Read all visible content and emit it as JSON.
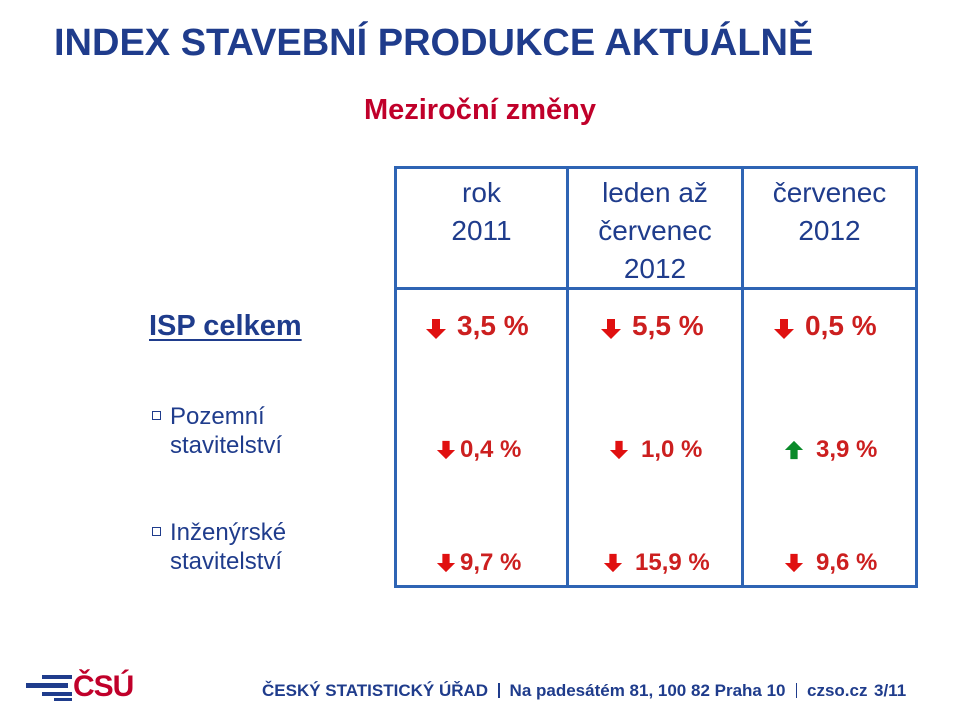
{
  "slide": {
    "title": "INDEX STAVEBNÍ PRODUKCE AKTUÁLNĚ",
    "subtitle": "Meziroční změny"
  },
  "columns": [
    {
      "lines": [
        "rok",
        "2011"
      ]
    },
    {
      "lines": [
        "leden až",
        "červenec",
        "2012"
      ]
    },
    {
      "lines": [
        "červenec",
        "2012"
      ]
    }
  ],
  "rows": [
    {
      "label_lines": [
        "ISP celkem"
      ],
      "values": [
        {
          "text": "3,5 %",
          "direction": "down"
        },
        {
          "text": "5,5 %",
          "direction": "down"
        },
        {
          "text": "0,5 %",
          "direction": "down"
        }
      ]
    },
    {
      "label_lines": [
        "Pozemní",
        "stavitelství"
      ],
      "values": [
        {
          "text": "0,4 %",
          "direction": "down"
        },
        {
          "text": "1,0 %",
          "direction": "down"
        },
        {
          "text": "3,9 %",
          "direction": "up"
        }
      ]
    },
    {
      "label_lines": [
        "Inženýrské",
        "stavitelství"
      ],
      "values": [
        {
          "text": "9,7 %",
          "direction": "down"
        },
        {
          "text": "15,9 %",
          "direction": "down"
        },
        {
          "text": "9,6 %",
          "direction": "down"
        }
      ]
    }
  ],
  "footer": {
    "logo_text": "ČSÚ",
    "org": "ČESKÝ STATISTICKÝ ÚŘAD",
    "address": "Na padesátém 81, 100 82 Praha 10",
    "web": "czso.cz",
    "page": "3/11"
  },
  "colors": {
    "title": "#1f3c8c",
    "accent_red": "#c0002a",
    "down_arrow": "#e01010",
    "up_arrow": "#0a8a2a",
    "grid": "#2e64b4"
  }
}
